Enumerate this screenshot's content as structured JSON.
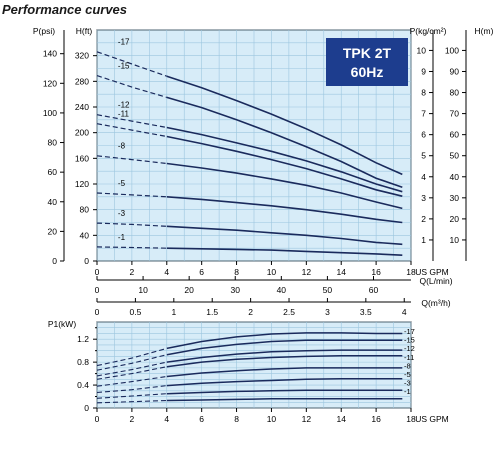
{
  "page_title": "Performance curves",
  "chart_data": [
    {
      "type": "line",
      "name_badge": [
        "TPK 2T",
        "60Hz"
      ],
      "x": {
        "label": "US GPM",
        "range": [
          0,
          18
        ],
        "ticks": [
          0,
          2,
          4,
          6,
          8,
          10,
          12,
          14,
          16,
          18
        ]
      },
      "x_secondary": [
        {
          "label": "Q(L/min)",
          "range": [
            0,
            68.14
          ],
          "ticks": [
            0,
            10,
            20,
            30,
            40,
            50,
            60
          ]
        },
        {
          "label": "Q(m³/h)",
          "range": [
            0,
            4.088
          ],
          "ticks": [
            0,
            0.5,
            1,
            1.5,
            2,
            2.5,
            3,
            3.5,
            4
          ]
        }
      ],
      "y": {
        "label": "H(ft)",
        "range": [
          0,
          360
        ],
        "ticks": [
          0,
          40,
          80,
          120,
          160,
          200,
          240,
          280,
          320
        ]
      },
      "y_secondary": [
        {
          "label": "P(psi)",
          "range": [
            0,
            156
          ],
          "ticks": [
            0,
            20,
            40,
            60,
            80,
            100,
            120,
            140
          ]
        },
        {
          "label": "P(kg/cm²)",
          "range": [
            0,
            10.97
          ],
          "ticks": [
            1,
            2,
            3,
            4,
            5,
            6,
            7,
            8,
            9,
            10
          ]
        },
        {
          "label": "H(m)",
          "range": [
            0,
            109.7
          ],
          "ticks": [
            10,
            20,
            30,
            40,
            50,
            60,
            70,
            80,
            90,
            100
          ]
        }
      ],
      "grid": true,
      "dashed_segment_until_gpm": 4,
      "series": [
        {
          "name": "-17",
          "x": [
            0,
            2,
            4,
            6,
            8,
            10,
            12,
            14,
            16,
            17.5
          ],
          "values": [
            326,
            307,
            288,
            270,
            250,
            229,
            206,
            181,
            153,
            135
          ]
        },
        {
          "name": "-15",
          "x": [
            0,
            2,
            4,
            6,
            8,
            10,
            12,
            14,
            16,
            17.5
          ],
          "values": [
            289,
            271,
            255,
            239,
            220,
            200,
            178,
            155,
            129,
            115
          ]
        },
        {
          "name": "-12",
          "x": [
            0,
            2,
            4,
            6,
            8,
            10,
            12,
            14,
            16,
            17.5
          ],
          "values": [
            228,
            218,
            208,
            197,
            184,
            171,
            156,
            139,
            120,
            108
          ]
        },
        {
          "name": "-11",
          "x": [
            0,
            2,
            4,
            6,
            8,
            10,
            12,
            14,
            16,
            17.5
          ],
          "values": [
            214,
            204,
            194,
            183,
            171,
            158,
            144,
            128,
            111,
            101
          ]
        },
        {
          "name": "-8",
          "x": [
            0,
            2,
            4,
            6,
            8,
            10,
            12,
            14,
            16,
            17.5
          ],
          "values": [
            164,
            158,
            152,
            145,
            137,
            128,
            118,
            106,
            92,
            82
          ]
        },
        {
          "name": "-5",
          "x": [
            0,
            2,
            4,
            6,
            8,
            10,
            12,
            14,
            16,
            17.5
          ],
          "values": [
            106,
            103,
            100,
            96,
            91,
            86,
            80,
            73,
            65,
            60
          ]
        },
        {
          "name": "-3",
          "x": [
            0,
            2,
            4,
            6,
            8,
            10,
            12,
            14,
            16,
            17.5
          ],
          "values": [
            59,
            57,
            54,
            51,
            48,
            44,
            40,
            35,
            29,
            26
          ]
        },
        {
          "name": "-1",
          "x": [
            0,
            2,
            4,
            6,
            8,
            10,
            12,
            14,
            16,
            17.5
          ],
          "values": [
            22,
            21,
            20,
            19,
            18,
            17,
            15,
            13,
            11,
            9
          ]
        }
      ]
    },
    {
      "type": "line",
      "x": {
        "label": "US GPM",
        "range": [
          0,
          18
        ],
        "ticks": [
          0,
          2,
          4,
          6,
          8,
          10,
          12,
          14,
          16,
          18
        ]
      },
      "y": {
        "label": "P1(kW)",
        "range": [
          0,
          1.5
        ],
        "ticks": [
          0,
          0.4,
          0.8,
          1.2
        ],
        "minor_ticks": [
          0.2,
          0.6,
          1.0,
          1.4
        ]
      },
      "grid": true,
      "dashed_segment_until_gpm": 4,
      "series": [
        {
          "name": "-17",
          "x": [
            0,
            2,
            4,
            6,
            8,
            10,
            12,
            14,
            16,
            17.5
          ],
          "values": [
            0.74,
            0.87,
            1.04,
            1.16,
            1.24,
            1.29,
            1.31,
            1.31,
            1.3,
            1.3
          ]
        },
        {
          "name": "-15",
          "x": [
            0,
            2,
            4,
            6,
            8,
            10,
            12,
            14,
            16,
            17.5
          ],
          "values": [
            0.66,
            0.78,
            0.93,
            1.04,
            1.11,
            1.16,
            1.18,
            1.18,
            1.18,
            1.18
          ]
        },
        {
          "name": "-12",
          "x": [
            0,
            2,
            4,
            6,
            8,
            10,
            12,
            14,
            16,
            17.5
          ],
          "values": [
            0.56,
            0.67,
            0.8,
            0.88,
            0.94,
            0.98,
            1.0,
            1.01,
            1.01,
            1.01
          ]
        },
        {
          "name": "-11",
          "x": [
            0,
            2,
            4,
            6,
            8,
            10,
            12,
            14,
            16,
            17.5
          ],
          "values": [
            0.5,
            0.6,
            0.72,
            0.8,
            0.85,
            0.88,
            0.9,
            0.91,
            0.91,
            0.91
          ]
        },
        {
          "name": "-8",
          "x": [
            0,
            2,
            4,
            6,
            8,
            10,
            12,
            14,
            16,
            17.5
          ],
          "values": [
            0.38,
            0.46,
            0.55,
            0.61,
            0.65,
            0.68,
            0.7,
            0.7,
            0.7,
            0.7
          ]
        },
        {
          "name": "-5",
          "x": [
            0,
            2,
            4,
            6,
            8,
            10,
            12,
            14,
            16,
            17.5
          ],
          "values": [
            0.27,
            0.32,
            0.39,
            0.43,
            0.46,
            0.48,
            0.5,
            0.51,
            0.51,
            0.51
          ]
        },
        {
          "name": "-3",
          "x": [
            0,
            2,
            4,
            6,
            8,
            10,
            12,
            14,
            16,
            17.5
          ],
          "values": [
            0.17,
            0.21,
            0.25,
            0.27,
            0.29,
            0.3,
            0.31,
            0.31,
            0.31,
            0.31
          ]
        },
        {
          "name": "-1",
          "x": [
            0,
            2,
            4,
            6,
            8,
            10,
            12,
            14,
            16,
            17.5
          ],
          "values": [
            0.09,
            0.11,
            0.13,
            0.14,
            0.15,
            0.16,
            0.16,
            0.16,
            0.16,
            0.16
          ]
        }
      ]
    }
  ],
  "colors": {
    "plot_bg": "#d7ecf8",
    "grid": "#9cc6df",
    "curve": "#1a2a5c",
    "badge_bg": "#1d3d8e",
    "badge_text": "#ffffff",
    "axis": "#000000",
    "title": "#1a1a1a"
  }
}
